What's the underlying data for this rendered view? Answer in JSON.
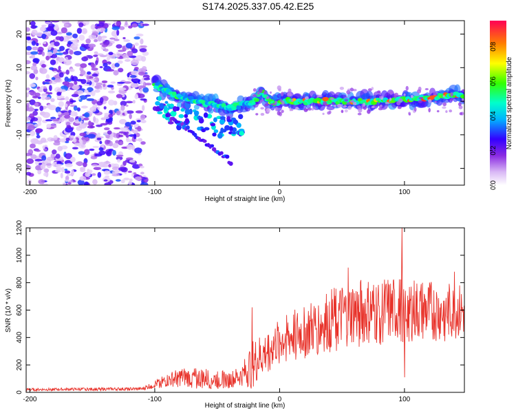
{
  "title": "S174.2025.337.05.42.E25",
  "chart_data": [
    {
      "type": "heatmap",
      "title": "",
      "xlabel": "Height of straight line (km)",
      "ylabel": "Frequency (Hz)",
      "xlim": [
        -203,
        148
      ],
      "ylim": [
        -25,
        24
      ],
      "xticks": [
        "-200",
        "-100",
        "0",
        "100"
      ],
      "yticks": [
        "20",
        "10",
        "0",
        "-10",
        "-20"
      ],
      "colorbar": {
        "label": "Normalized spectral amplitude",
        "range": [
          0,
          0.95
        ],
        "ticks": [
          "0.0",
          "0.2",
          "0.4",
          "0.6",
          "0.8"
        ]
      },
      "features": {
        "noise_region_x": [
          -203,
          -107
        ],
        "main_line": [
          {
            "x": -100,
            "f": 5
          },
          {
            "x": -90,
            "f": 3
          },
          {
            "x": -80,
            "f": 1
          },
          {
            "x": -65,
            "f": 0
          },
          {
            "x": -55,
            "f": -1
          },
          {
            "x": -40,
            "f": -2
          },
          {
            "x": -30,
            "f": -1
          },
          {
            "x": -20,
            "f": 0
          },
          {
            "x": -15,
            "f": 3
          },
          {
            "x": -5,
            "f": -1
          },
          {
            "x": 0,
            "f": 0
          },
          {
            "x": 20,
            "f": 0
          },
          {
            "x": 50,
            "f": 0
          },
          {
            "x": 80,
            "f": 0
          },
          {
            "x": 110,
            "f": 0.5
          },
          {
            "x": 130,
            "f": 1.5
          },
          {
            "x": 148,
            "f": 2
          }
        ],
        "chirp_branch": [
          {
            "x": -90,
            "f": -4
          },
          {
            "x": -75,
            "f": -8
          },
          {
            "x": -60,
            "f": -12
          },
          {
            "x": -50,
            "f": -15
          },
          {
            "x": -42,
            "f": -17
          },
          {
            "x": -38,
            "f": -19
          }
        ]
      }
    },
    {
      "type": "line",
      "title": "",
      "xlabel": "Height of straight line (km)",
      "ylabel": "SNR (10 * v/v)",
      "xlim": [
        -203,
        148
      ],
      "ylim": [
        0,
        1200
      ],
      "xticks": [
        "-200",
        "-100",
        "0",
        "100"
      ],
      "yticks": [
        "0",
        "200",
        "400",
        "600",
        "800",
        "1000",
        "1200"
      ],
      "color": "#e8322a",
      "series": [
        {
          "name": "SNR",
          "envelope": [
            {
              "x": -203,
              "mean": 20,
              "spread": 10
            },
            {
              "x": -110,
              "mean": 25,
              "spread": 12
            },
            {
              "x": -100,
              "mean": 60,
              "spread": 30
            },
            {
              "x": -80,
              "mean": 110,
              "spread": 70
            },
            {
              "x": -60,
              "mean": 100,
              "spread": 80
            },
            {
              "x": -40,
              "mean": 90,
              "spread": 60
            },
            {
              "x": -30,
              "mean": 120,
              "spread": 80
            },
            {
              "x": -22,
              "mean": 200,
              "spread": 180
            },
            {
              "x": -10,
              "mean": 300,
              "spread": 160
            },
            {
              "x": 0,
              "mean": 380,
              "spread": 170
            },
            {
              "x": 20,
              "mean": 440,
              "spread": 200
            },
            {
              "x": 40,
              "mean": 520,
              "spread": 230
            },
            {
              "x": 60,
              "mean": 580,
              "spread": 250
            },
            {
              "x": 80,
              "mean": 580,
              "spread": 250
            },
            {
              "x": 100,
              "mean": 600,
              "spread": 240
            },
            {
              "x": 120,
              "mean": 580,
              "spread": 230
            },
            {
              "x": 148,
              "mean": 580,
              "spread": 200
            }
          ],
          "peaks": [
            {
              "x": -22,
              "y": 620
            },
            {
              "x": 55,
              "y": 910
            },
            {
              "x": 98,
              "y": 1200
            },
            {
              "x": 100,
              "y": 110
            },
            {
              "x": 140,
              "y": 880
            }
          ]
        }
      ]
    }
  ]
}
